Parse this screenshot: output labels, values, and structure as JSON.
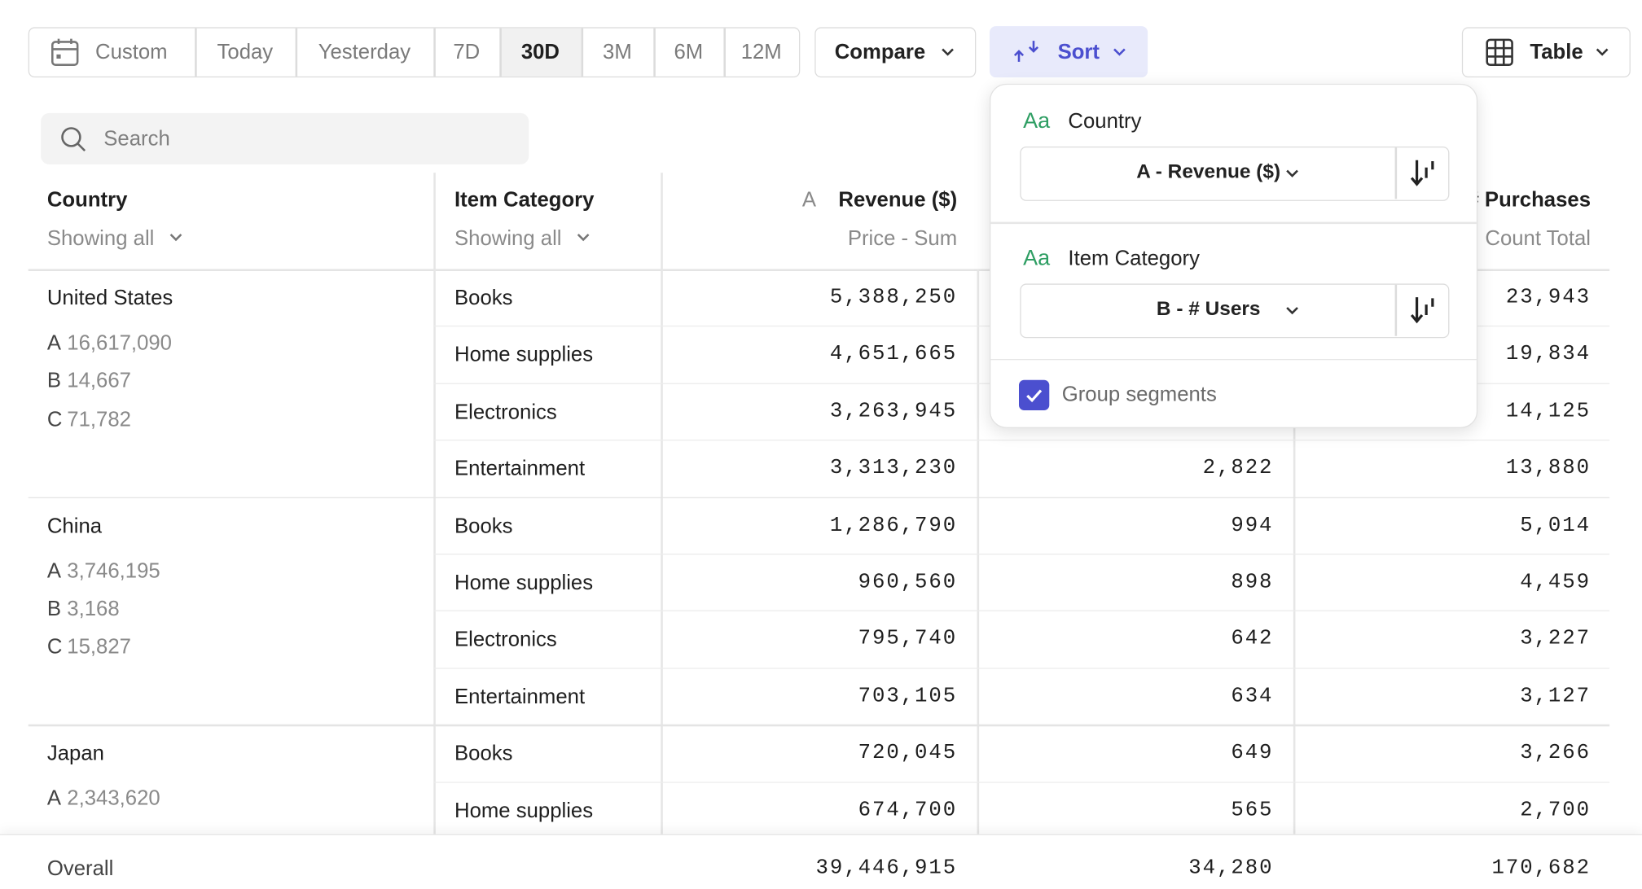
{
  "toolbar": {
    "date_ranges": [
      "Custom",
      "Today",
      "Yesterday",
      "7D",
      "30D",
      "3M",
      "6M",
      "12M"
    ],
    "selected_range": "30D",
    "compare": "Compare",
    "sort": "Sort",
    "view": "Table"
  },
  "search": {
    "placeholder": "Search"
  },
  "table": {
    "columns": [
      {
        "title": "Country",
        "subtitle": "Showing all"
      },
      {
        "title": "Item Category",
        "subtitle": "Showing all"
      },
      {
        "letter": "A",
        "title": "Revenue ($)",
        "subtitle": "Price - Sum"
      },
      {
        "title": "# Purchases",
        "subtitle": "Count Total"
      }
    ],
    "groups": [
      {
        "country": "United States",
        "summary": [
          {
            "letter": "A",
            "value": "16,617,090"
          },
          {
            "letter": "B",
            "value": "14,667"
          },
          {
            "letter": "C",
            "value": "71,782"
          }
        ],
        "rows": [
          {
            "category": "Books",
            "revenue": "5,388,250",
            "users": null,
            "purchases": "23,943"
          },
          {
            "category": "Home supplies",
            "revenue": "4,651,665",
            "users": null,
            "purchases": "19,834"
          },
          {
            "category": "Electronics",
            "revenue": "3,263,945",
            "users": null,
            "purchases": "14,125"
          },
          {
            "category": "Entertainment",
            "revenue": "3,313,230",
            "users": "2,822",
            "purchases": "13,880"
          }
        ]
      },
      {
        "country": "China",
        "summary": [
          {
            "letter": "A",
            "value": "3,746,195"
          },
          {
            "letter": "B",
            "value": "3,168"
          },
          {
            "letter": "C",
            "value": "15,827"
          }
        ],
        "rows": [
          {
            "category": "Books",
            "revenue": "1,286,790",
            "users": "994",
            "purchases": "5,014"
          },
          {
            "category": "Home supplies",
            "revenue": "960,560",
            "users": "898",
            "purchases": "4,459"
          },
          {
            "category": "Electronics",
            "revenue": "795,740",
            "users": "642",
            "purchases": "3,227"
          },
          {
            "category": "Entertainment",
            "revenue": "703,105",
            "users": "634",
            "purchases": "3,127"
          }
        ]
      },
      {
        "country": "Japan",
        "summary": [
          {
            "letter": "A",
            "value": "2,343,620"
          }
        ],
        "rows": [
          {
            "category": "Books",
            "revenue": "720,045",
            "users": "649",
            "purchases": "3,266"
          },
          {
            "category": "Home supplies",
            "revenue": "674,700",
            "users": "565",
            "purchases": "2,700"
          }
        ]
      }
    ],
    "footer": {
      "label": "Overall",
      "revenue": "39,446,915",
      "users": "34,280",
      "purchases": "170,682"
    }
  },
  "sort_popup": {
    "sections": [
      {
        "icon": "Aa",
        "title": "Country",
        "sort_by": "A - Revenue ($)"
      },
      {
        "icon": "Aa",
        "title": "Item Category",
        "sort_by": "B - # Users"
      }
    ],
    "group_segments": {
      "label": "Group segments",
      "checked": true
    }
  }
}
